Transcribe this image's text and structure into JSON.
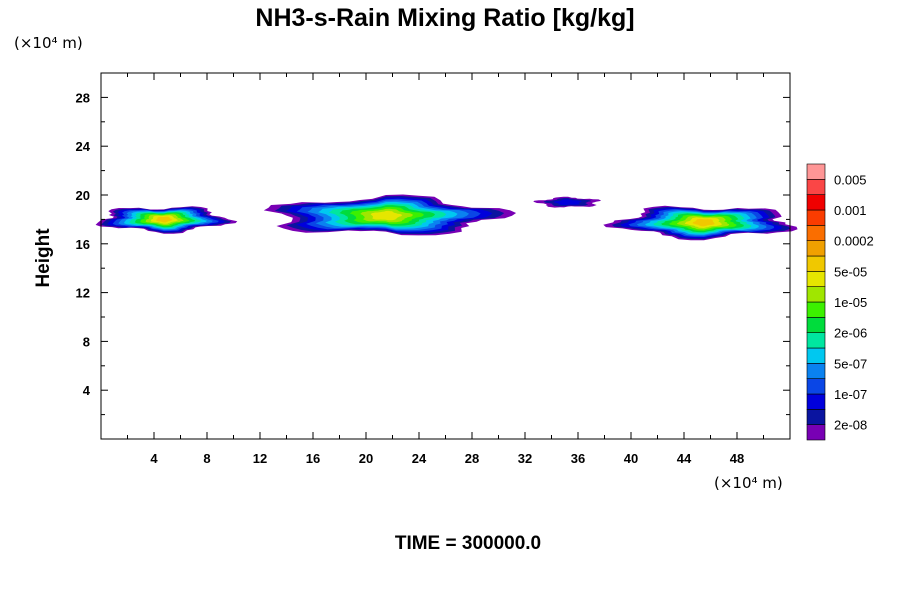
{
  "chart_data": {
    "type": "heatmap",
    "title": "NH3-s-Rain Mixing Ratio [kg/kg]",
    "xunit": "(×10⁴ m)",
    "yunit": "(×10⁴ m)",
    "ylabel": "Height",
    "xlabel": "",
    "footer": "TIME = 300000.0",
    "xlim": [
      0,
      52
    ],
    "ylim": [
      0,
      30
    ],
    "xticks": [
      "4",
      "8",
      "12",
      "16",
      "20",
      "24",
      "28",
      "32",
      "36",
      "40",
      "44",
      "48"
    ],
    "yticks": [
      "4",
      "8",
      "12",
      "16",
      "20",
      "24",
      "28"
    ],
    "grid": false,
    "colorbar": {
      "colors": [
        "#7800b4",
        "#0a14a0",
        "#0000dc",
        "#0a46e6",
        "#0a82f0",
        "#00c8f0",
        "#00e6a0",
        "#00dc3c",
        "#3cf000",
        "#a0e600",
        "#e6e600",
        "#f0c800",
        "#f0a000",
        "#fa6e00",
        "#fa3c00",
        "#f00000",
        "#fa4646",
        "#ff9696"
      ],
      "labels": [
        "2e-08",
        "1e-07",
        "5e-07",
        "2e-06",
        "1e-05",
        "5e-05",
        "0.0002",
        "0.001",
        "0.005"
      ],
      "location": "right"
    },
    "regions": [
      {
        "x": [
          0.0,
          9.5
        ],
        "y": [
          17.0,
          19.0
        ],
        "peak": 11
      },
      {
        "x": [
          13.0,
          30.0
        ],
        "y": [
          16.8,
          19.8
        ],
        "peak": 10
      },
      {
        "x": [
          33.0,
          37.5
        ],
        "y": [
          19.0,
          19.8
        ],
        "peak": 2
      },
      {
        "x": [
          39.0,
          52.0
        ],
        "y": [
          16.5,
          19.0
        ],
        "peak": 11
      }
    ]
  }
}
